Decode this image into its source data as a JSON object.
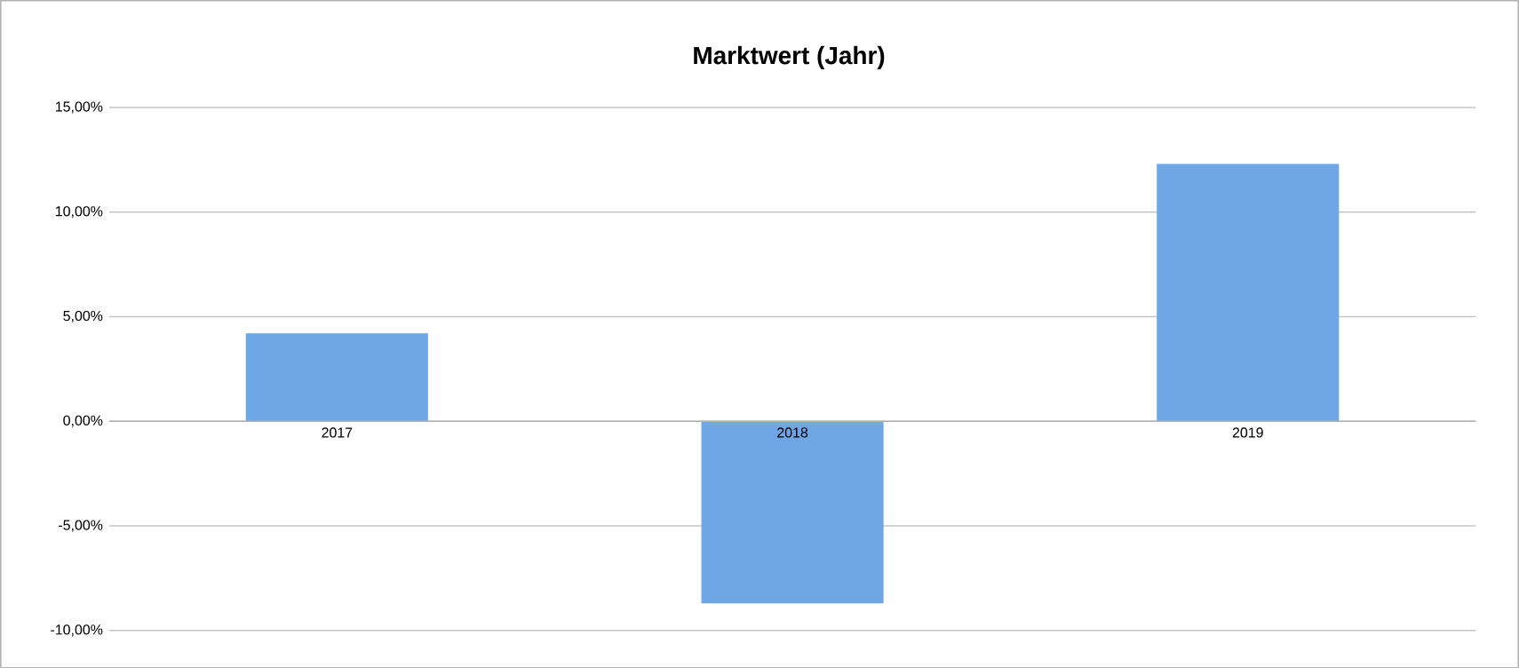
{
  "chart_data": {
    "type": "bar",
    "title": "Marktwert (Jahr)",
    "categories": [
      "2017",
      "2018",
      "2019"
    ],
    "values": [
      4.2,
      -8.7,
      12.3
    ],
    "color": "#6fa6e6",
    "ylim": [
      -10,
      15
    ],
    "yticks": [
      {
        "value": -10,
        "label": "-10,00%"
      },
      {
        "value": -5,
        "label": "-5,00%"
      },
      {
        "value": 0,
        "label": "0,00%"
      },
      {
        "value": 5,
        "label": "5,00%"
      },
      {
        "value": 10,
        "label": "10,00%"
      },
      {
        "value": 15,
        "label": "15,00%"
      }
    ],
    "grid": "y"
  }
}
